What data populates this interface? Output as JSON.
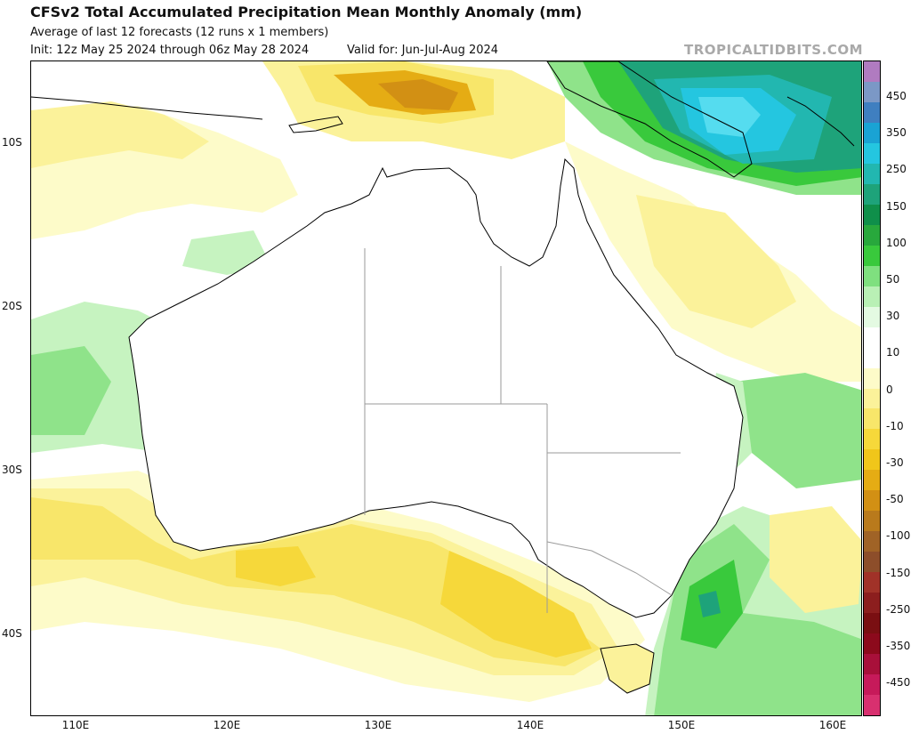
{
  "header": {
    "title": "CFSv2 Total Accumulated Precipitation Mean Monthly Anomaly (mm)",
    "subtitle1": "Average of last 12 forecasts (12 runs x 1 members)",
    "init": "Init: 12z May 25 2024 through 06z May 28 2024",
    "valid": "Valid for: Jun-Jul-Aug 2024",
    "brand": "TROPICALTIDBITS.COM"
  },
  "axes": {
    "lat_labels": [
      "10S",
      "20S",
      "30S",
      "40S"
    ],
    "lon_labels": [
      "110E",
      "120E",
      "130E",
      "140E",
      "150E",
      "160E"
    ]
  },
  "colorbar": {
    "labels": [
      "450",
      "350",
      "250",
      "150",
      "100",
      "50",
      "30",
      "10",
      "0",
      "-10",
      "-30",
      "-50",
      "-100",
      "-150",
      "-250",
      "-350",
      "-450"
    ],
    "colors": [
      "#b07bc0",
      "#7b98c6",
      "#3f7fc0",
      "#1aa3d4",
      "#24c6e0",
      "#22b7b0",
      "#1ea37a",
      "#0f8f4a",
      "#28a83c",
      "#39c93c",
      "#7fe07f",
      "#b9f0b5",
      "#e4fae2",
      "#ffffff",
      "#ffffff",
      "#fdfbc9",
      "#fbf29a",
      "#f8e66a",
      "#f6d83a",
      "#f0c61a",
      "#e5ac14",
      "#d29014",
      "#b97a1c",
      "#a06326",
      "#8d4e2a",
      "#a13228",
      "#8c1e1e",
      "#7a0f12",
      "#8c0a1c",
      "#a8103a",
      "#c61a5a",
      "#d8306f"
    ]
  },
  "map_colors": {
    "ocean": "#ffffff",
    "yellow1": "#fdfbc9",
    "yellow2": "#fbf29a",
    "yellow3": "#f8e66a",
    "yellow4": "#f6d83a",
    "orange1": "#e5ac14",
    "orange2": "#d29014",
    "green1": "#c6f3c0",
    "green2": "#8fe38a",
    "green3": "#39c93c",
    "green4": "#0f8f4a",
    "teal1": "#1ea37a",
    "teal2": "#22b7b0",
    "cyan1": "#24c6e0",
    "cyan2": "#55dcef",
    "coast": "#000000",
    "border": "#9a9a9a"
  }
}
